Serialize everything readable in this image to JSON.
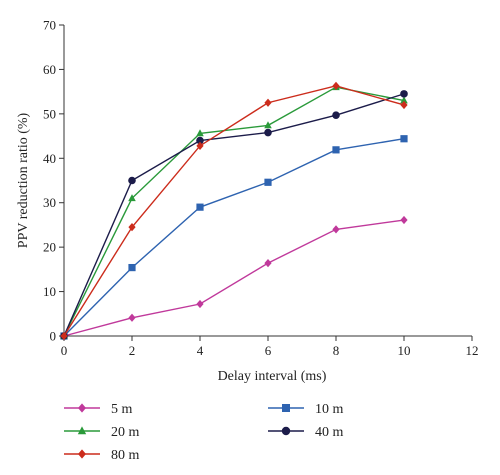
{
  "chart_data": {
    "type": "line",
    "xlabel": "Delay interval (ms)",
    "ylabel": "PPV reduction ratio (%)",
    "xlim": [
      0,
      12
    ],
    "ylim": [
      0,
      70
    ],
    "xticks": [
      0,
      2,
      4,
      6,
      8,
      10,
      12
    ],
    "yticks": [
      0,
      10,
      20,
      30,
      40,
      50,
      60,
      70
    ],
    "x": [
      0,
      2,
      4,
      6,
      8,
      10
    ],
    "grid": false,
    "legend_position": "bottom",
    "series": [
      {
        "name": "5 m",
        "color": "#c0399b",
        "marker": "diamond",
        "values": [
          0,
          4.1,
          7.2,
          16.4,
          24.0,
          26.1
        ]
      },
      {
        "name": "10 m",
        "color": "#2e63b0",
        "marker": "square",
        "values": [
          0,
          15.4,
          29.0,
          34.6,
          41.9,
          44.4
        ]
      },
      {
        "name": "20 m",
        "color": "#2a9a3a",
        "marker": "triangle",
        "values": [
          0,
          31.0,
          45.6,
          47.4,
          56.0,
          53.0
        ]
      },
      {
        "name": "40 m",
        "color": "#1c1c4a",
        "marker": "circle",
        "values": [
          0,
          35.0,
          44.0,
          45.8,
          49.7,
          54.5
        ]
      },
      {
        "name": "80 m",
        "color": "#cc2c1c",
        "marker": "diamond",
        "values": [
          0,
          24.5,
          42.8,
          52.5,
          56.3,
          52.0
        ]
      }
    ]
  }
}
